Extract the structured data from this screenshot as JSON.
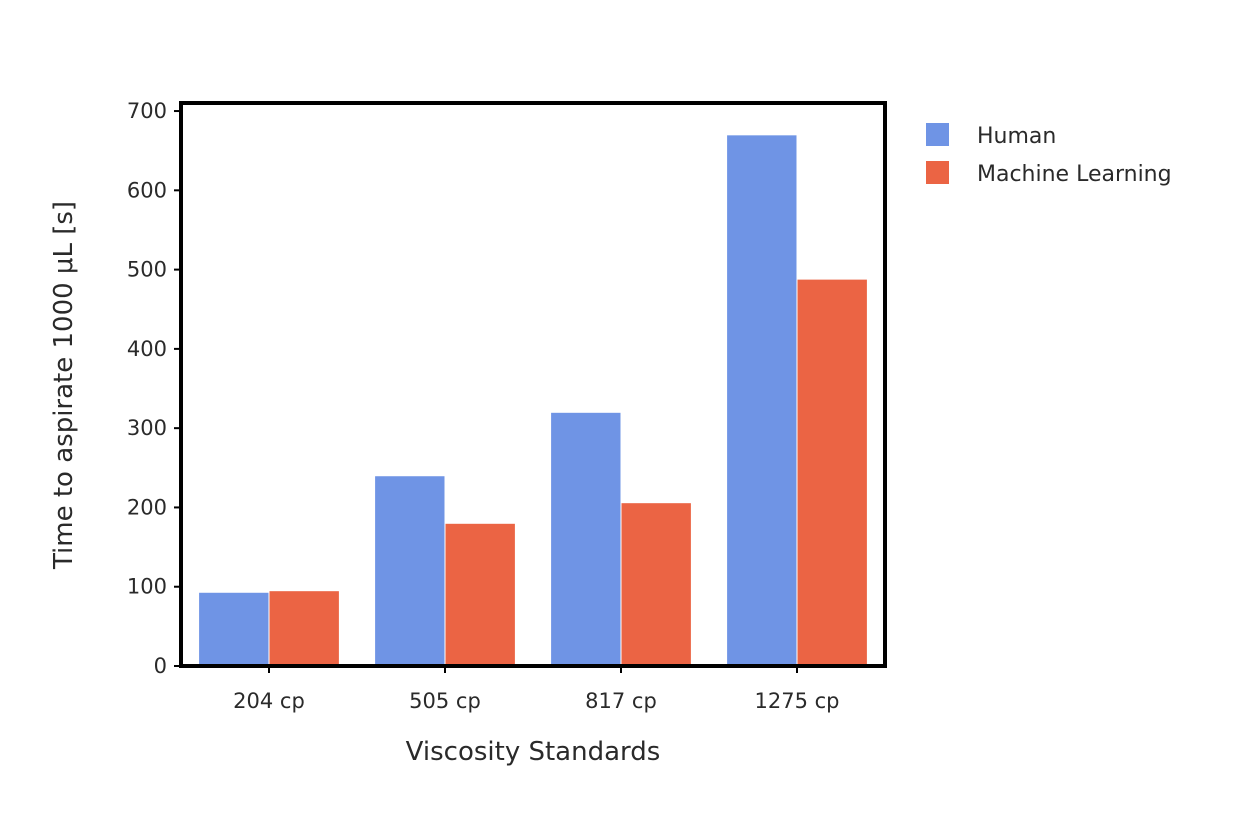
{
  "chart_data": {
    "type": "bar",
    "categories": [
      "204 cp",
      "505 cp",
      "817 cp",
      "1275 cp"
    ],
    "series": [
      {
        "name": "Human",
        "values": [
          93,
          240,
          320,
          670
        ],
        "color": "#6f94e5"
      },
      {
        "name": "Machine Learning",
        "values": [
          95,
          180,
          206,
          488
        ],
        "color": "#eb6444"
      }
    ],
    "xlabel": "Viscosity Standards",
    "ylabel": "Time to aspirate 1000 μL [s]",
    "ylim": [
      0,
      700
    ],
    "yticks": [
      0,
      100,
      200,
      300,
      400,
      500,
      600,
      700
    ],
    "grid": false,
    "legend_position": "right"
  }
}
